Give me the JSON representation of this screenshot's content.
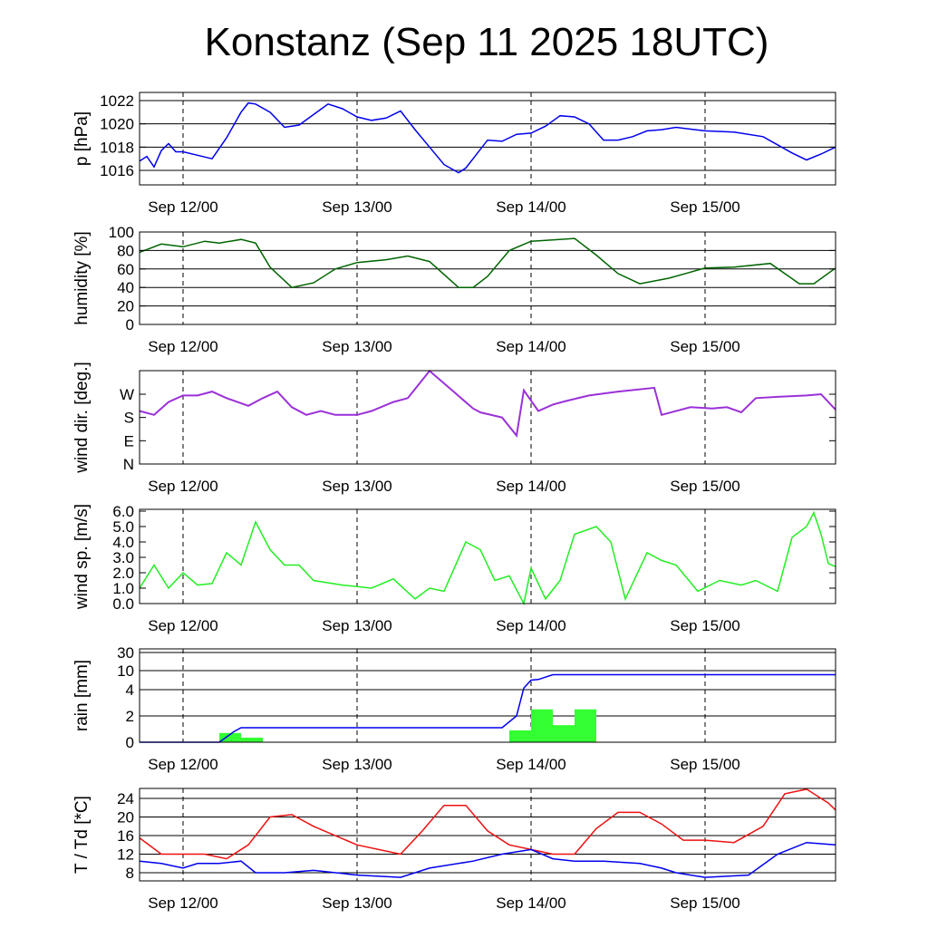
{
  "title": "Konstanz (Sep 11 2025 18UTC)",
  "x_axis": {
    "start": "2025-09-11 18:00",
    "end": "2025-09-15 18:00",
    "tick_labels": [
      "Sep 12/00",
      "Sep 13/00",
      "Sep 14/00",
      "Sep 15/00"
    ],
    "tick_times": [
      "2025-09-12 00:00",
      "2025-09-13 00:00",
      "2025-09-14 00:00",
      "2025-09-15 00:00"
    ]
  },
  "colors": {
    "pressure": "#0000ee",
    "humidity": "#006400",
    "wind_dir": "#9b30d9",
    "wind_speed": "#22ee22",
    "rain_bars": "#33ff33",
    "rain_cum": "#0000ee",
    "temperature": "#ee1111",
    "dewpoint": "#0000ee"
  },
  "chart_data": [
    {
      "type": "line",
      "ylabel": "p [hPa]",
      "ylim": [
        1014.5,
        1022.8
      ],
      "yticks": [
        1016,
        1018,
        1020,
        1022
      ],
      "ytick_labels": [
        "1016",
        "1018",
        "1020",
        "1022"
      ],
      "grid": true,
      "series": [
        {
          "x": [
            "2025-09-11 18:00",
            "2025-09-11 19:00",
            "2025-09-11 20:00",
            "2025-09-11 21:00",
            "2025-09-11 22:00",
            "2025-09-11 23:00",
            "2025-09-12 00:00",
            "2025-09-12 02:00",
            "2025-09-12 04:00",
            "2025-09-12 06:00",
            "2025-09-12 08:00",
            "2025-09-12 09:00",
            "2025-09-12 10:00",
            "2025-09-12 12:00",
            "2025-09-12 14:00",
            "2025-09-12 16:00",
            "2025-09-12 18:00",
            "2025-09-12 20:00",
            "2025-09-12 22:00",
            "2025-09-13 00:00",
            "2025-09-13 02:00",
            "2025-09-13 04:00",
            "2025-09-13 06:00",
            "2025-09-13 08:00",
            "2025-09-13 10:00",
            "2025-09-13 12:00",
            "2025-09-13 14:00",
            "2025-09-13 15:00",
            "2025-09-13 16:00",
            "2025-09-13 18:00",
            "2025-09-13 20:00",
            "2025-09-13 22:00",
            "2025-09-14 00:00",
            "2025-09-14 02:00",
            "2025-09-14 04:00",
            "2025-09-14 06:00",
            "2025-09-14 08:00",
            "2025-09-14 10:00",
            "2025-09-14 12:00",
            "2025-09-14 14:00",
            "2025-09-14 16:00",
            "2025-09-14 18:00",
            "2025-09-14 20:00",
            "2025-09-15 00:00",
            "2025-09-15 04:00",
            "2025-09-15 08:00",
            "2025-09-15 10:00",
            "2025-09-15 12:00",
            "2025-09-15 14:00",
            "2025-09-15 16:00",
            "2025-09-15 18:00"
          ],
          "y": [
            1016.8,
            1017.2,
            1016.3,
            1017.7,
            1018.3,
            1017.6,
            1017.6,
            1017.3,
            1017.0,
            1018.8,
            1021.0,
            1021.8,
            1021.7,
            1021.0,
            1019.7,
            1019.9,
            1020.8,
            1021.7,
            1021.3,
            1020.6,
            1020.3,
            1020.5,
            1021.1,
            1019.5,
            1018.0,
            1016.5,
            1015.8,
            1016.2,
            1017.0,
            1018.6,
            1018.5,
            1019.1,
            1019.2,
            1019.8,
            1020.7,
            1020.6,
            1020.0,
            1018.6,
            1018.6,
            1018.9,
            1019.4,
            1019.5,
            1019.7,
            1019.4,
            1019.3,
            1018.9,
            1018.2,
            1017.5,
            1016.9,
            1017.4,
            1018.0
          ]
        }
      ]
    },
    {
      "type": "line",
      "ylabel": "humidity [%]",
      "ylim": [
        0,
        100
      ],
      "yticks": [
        0,
        20,
        40,
        60,
        80,
        100
      ],
      "ytick_labels": [
        "0",
        "20",
        "40",
        "60",
        "80",
        "100"
      ],
      "grid": true,
      "series": [
        {
          "x": [
            "2025-09-11 18:00",
            "2025-09-11 21:00",
            "2025-09-12 00:00",
            "2025-09-12 03:00",
            "2025-09-12 05:00",
            "2025-09-12 08:00",
            "2025-09-12 10:00",
            "2025-09-12 12:00",
            "2025-09-12 15:00",
            "2025-09-12 18:00",
            "2025-09-12 21:00",
            "2025-09-13 00:00",
            "2025-09-13 04:00",
            "2025-09-13 07:00",
            "2025-09-13 10:00",
            "2025-09-13 14:00",
            "2025-09-13 16:00",
            "2025-09-13 18:00",
            "2025-09-13 21:00",
            "2025-09-14 00:00",
            "2025-09-14 02:00",
            "2025-09-14 06:00",
            "2025-09-14 09:00",
            "2025-09-14 12:00",
            "2025-09-14 15:00",
            "2025-09-14 19:00",
            "2025-09-15 00:00",
            "2025-09-15 04:00",
            "2025-09-15 09:00",
            "2025-09-15 11:00",
            "2025-09-15 13:00",
            "2025-09-15 15:00",
            "2025-09-15 18:00"
          ],
          "y": [
            78,
            87,
            84,
            90,
            88,
            92,
            88,
            62,
            40,
            45,
            60,
            67,
            70,
            74,
            68,
            40,
            40,
            52,
            80,
            90,
            91,
            93,
            75,
            55,
            44,
            50,
            61,
            62,
            66,
            55,
            44,
            44,
            61
          ]
        }
      ]
    },
    {
      "type": "scatter",
      "ylabel": "wind dir. [deg.]",
      "ylim": [
        0,
        375
      ],
      "yticks": [
        0,
        90,
        180,
        270
      ],
      "ytick_labels": [
        "N",
        "E",
        "S",
        "W"
      ],
      "grid": false,
      "series": [
        {
          "x": [
            "2025-09-11 18:00",
            "2025-09-11 20:00",
            "2025-09-11 22:00",
            "2025-09-12 00:00",
            "2025-09-12 02:00",
            "2025-09-12 04:00",
            "2025-09-12 06:00",
            "2025-09-12 09:00",
            "2025-09-12 11:00",
            "2025-09-12 13:00",
            "2025-09-12 15:00",
            "2025-09-12 17:00",
            "2025-09-12 19:00",
            "2025-09-12 21:00",
            "2025-09-13 00:00",
            "2025-09-13 02:00",
            "2025-09-13 05:00",
            "2025-09-13 07:00",
            "2025-09-13 08:00",
            "2025-09-13 10:00",
            "2025-09-13 16:00",
            "2025-09-13 17:00",
            "2025-09-13 20:00",
            "2025-09-13 22:00",
            "2025-09-13 23:00",
            "2025-09-14 01:00",
            "2025-09-14 03:00",
            "2025-09-14 05:00",
            "2025-09-14 08:00",
            "2025-09-14 12:00",
            "2025-09-14 17:00",
            "2025-09-14 18:00",
            "2025-09-14 22:00",
            "2025-09-15 01:00",
            "2025-09-15 03:00",
            "2025-09-15 05:00",
            "2025-09-15 07:00",
            "2025-09-15 10:00",
            "2025-09-15 14:00",
            "2025-09-15 16:00",
            "2025-09-15 18:00"
          ],
          "y": [
            205,
            190,
            240,
            265,
            265,
            280,
            255,
            225,
            255,
            280,
            220,
            190,
            205,
            190,
            190,
            205,
            240,
            255,
            290,
            360,
            215,
            200,
            180,
            110,
            285,
            205,
            230,
            245,
            265,
            280,
            295,
            190,
            220,
            215,
            220,
            200,
            255,
            260,
            265,
            270,
            210
          ]
        }
      ]
    },
    {
      "type": "line",
      "ylabel": "wind sp. [m/s]",
      "ylim": [
        0,
        6.2
      ],
      "yticks": [
        0,
        1,
        2,
        3,
        4,
        5,
        6
      ],
      "ytick_labels": [
        "0.0",
        "1.0",
        "2.0",
        "3.0",
        "4.0",
        "5.0",
        "6.0"
      ],
      "grid": false,
      "series": [
        {
          "x": [
            "2025-09-11 18:00",
            "2025-09-11 20:00",
            "2025-09-11 22:00",
            "2025-09-12 00:00",
            "2025-09-12 02:00",
            "2025-09-12 04:00",
            "2025-09-12 06:00",
            "2025-09-12 08:00",
            "2025-09-12 10:00",
            "2025-09-12 12:00",
            "2025-09-12 14:00",
            "2025-09-12 16:00",
            "2025-09-12 18:00",
            "2025-09-12 22:00",
            "2025-09-13 02:00",
            "2025-09-13 05:00",
            "2025-09-13 08:00",
            "2025-09-13 10:00",
            "2025-09-13 12:00",
            "2025-09-13 15:00",
            "2025-09-13 17:00",
            "2025-09-13 19:00",
            "2025-09-13 21:00",
            "2025-09-13 23:00",
            "2025-09-14 00:00",
            "2025-09-14 02:00",
            "2025-09-14 04:00",
            "2025-09-14 06:00",
            "2025-09-14 09:00",
            "2025-09-14 11:00",
            "2025-09-14 13:00",
            "2025-09-14 16:00",
            "2025-09-14 18:00",
            "2025-09-14 20:00",
            "2025-09-14 23:00",
            "2025-09-15 02:00",
            "2025-09-15 05:00",
            "2025-09-15 07:00",
            "2025-09-15 10:00",
            "2025-09-15 12:00",
            "2025-09-15 14:00",
            "2025-09-15 15:00",
            "2025-09-15 16:00",
            "2025-09-15 17:00",
            "2025-09-15 18:00"
          ],
          "y": [
            1.0,
            2.5,
            1.0,
            2.0,
            1.2,
            1.3,
            3.3,
            2.5,
            5.3,
            3.5,
            2.5,
            2.5,
            1.5,
            1.2,
            1.0,
            1.6,
            0.3,
            1.0,
            0.8,
            4.0,
            3.5,
            1.5,
            1.8,
            0.0,
            2.3,
            0.3,
            1.5,
            4.5,
            5.0,
            4.0,
            0.3,
            3.3,
            2.8,
            2.5,
            0.8,
            1.5,
            1.2,
            1.5,
            0.8,
            4.3,
            5.0,
            5.9,
            4.5,
            2.6,
            2.4
          ]
        }
      ]
    },
    {
      "type": "bar",
      "ylabel": "rain [mm]",
      "yscale": "nonlinear",
      "yticks": [
        0,
        2,
        4,
        10,
        30
      ],
      "ytick_labels": [
        "0",
        "2",
        "4",
        "10",
        "30"
      ],
      "grid": true,
      "series": [
        {
          "kind": "bars",
          "x_start": [
            "2025-09-12 05:00",
            "2025-09-12 08:00",
            "2025-09-13 21:00",
            "2025-09-14 00:00",
            "2025-09-14 03:00",
            "2025-09-14 06:00"
          ],
          "x_end": [
            "2025-09-12 08:00",
            "2025-09-12 11:00",
            "2025-09-14 00:00",
            "2025-09-14 03:00",
            "2025-09-14 06:00",
            "2025-09-14 09:00"
          ],
          "values": [
            0.7,
            0.35,
            0.9,
            2.5,
            1.3,
            2.5
          ]
        },
        {
          "kind": "cumulative-line",
          "x": [
            "2025-09-11 18:00",
            "2025-09-12 05:00",
            "2025-09-12 07:00",
            "2025-09-12 08:00",
            "2025-09-13 20:00",
            "2025-09-13 22:00",
            "2025-09-13 23:00",
            "2025-09-14 00:00",
            "2025-09-14 01:00",
            "2025-09-14 03:00",
            "2025-09-15 18:00"
          ],
          "y": [
            0,
            0,
            0.8,
            1.1,
            1.1,
            2.0,
            4.5,
            7.0,
            7.2,
            8.7,
            8.7
          ]
        }
      ]
    },
    {
      "type": "line",
      "ylabel": "T / Td [*C]",
      "ylim": [
        6,
        26
      ],
      "yticks": [
        8,
        12,
        16,
        20,
        24
      ],
      "ytick_labels": [
        "8",
        "12",
        "16",
        "20",
        "24"
      ],
      "grid": true,
      "series": [
        {
          "x": [
            "2025-09-11 18:00",
            "2025-09-11 21:00",
            "2025-09-12 00:00",
            "2025-09-12 03:00",
            "2025-09-12 06:00",
            "2025-09-12 09:00",
            "2025-09-12 12:00",
            "2025-09-12 15:00",
            "2025-09-12 18:00",
            "2025-09-13 00:00",
            "2025-09-13 06:00",
            "2025-09-13 09:00",
            "2025-09-13 12:00",
            "2025-09-13 15:00",
            "2025-09-13 18:00",
            "2025-09-13 21:00",
            "2025-09-14 00:00",
            "2025-09-14 03:00",
            "2025-09-14 06:00",
            "2025-09-14 09:00",
            "2025-09-14 12:00",
            "2025-09-14 15:00",
            "2025-09-14 18:00",
            "2025-09-14 21:00",
            "2025-09-15 00:00",
            "2025-09-15 04:00",
            "2025-09-15 08:00",
            "2025-09-15 11:00",
            "2025-09-15 14:00",
            "2025-09-15 17:00",
            "2025-09-15 18:00"
          ],
          "y": [
            15.5,
            12.0,
            12.0,
            12.0,
            11.0,
            14.0,
            20.0,
            20.5,
            18.0,
            14.0,
            12.0,
            17.0,
            22.5,
            22.5,
            17.0,
            14.0,
            13.0,
            12.0,
            12.0,
            17.5,
            21.0,
            21.0,
            18.5,
            15.0,
            15.0,
            14.5,
            18.0,
            25.0,
            26.0,
            23.0,
            21.5
          ]
        },
        {
          "x": [
            "2025-09-11 18:00",
            "2025-09-11 21:00",
            "2025-09-12 00:00",
            "2025-09-12 02:00",
            "2025-09-12 05:00",
            "2025-09-12 08:00",
            "2025-09-12 10:00",
            "2025-09-12 14:00",
            "2025-09-12 18:00",
            "2025-09-13 00:00",
            "2025-09-13 06:00",
            "2025-09-13 10:00",
            "2025-09-13 16:00",
            "2025-09-13 20:00",
            "2025-09-14 00:00",
            "2025-09-14 03:00",
            "2025-09-14 06:00",
            "2025-09-14 10:00",
            "2025-09-14 15:00",
            "2025-09-14 18:00",
            "2025-09-14 20:00",
            "2025-09-14 22:00",
            "2025-09-15 00:00",
            "2025-09-15 06:00",
            "2025-09-15 10:00",
            "2025-09-15 14:00",
            "2025-09-15 18:00"
          ],
          "y": [
            10.5,
            10.0,
            9.0,
            10.0,
            10.0,
            10.5,
            8.0,
            8.0,
            8.5,
            7.5,
            7.0,
            9.0,
            10.5,
            12.0,
            13.0,
            11.0,
            10.5,
            10.5,
            10.0,
            9.0,
            8.0,
            7.5,
            7.0,
            7.5,
            12.0,
            14.5,
            14.0
          ]
        }
      ]
    }
  ]
}
